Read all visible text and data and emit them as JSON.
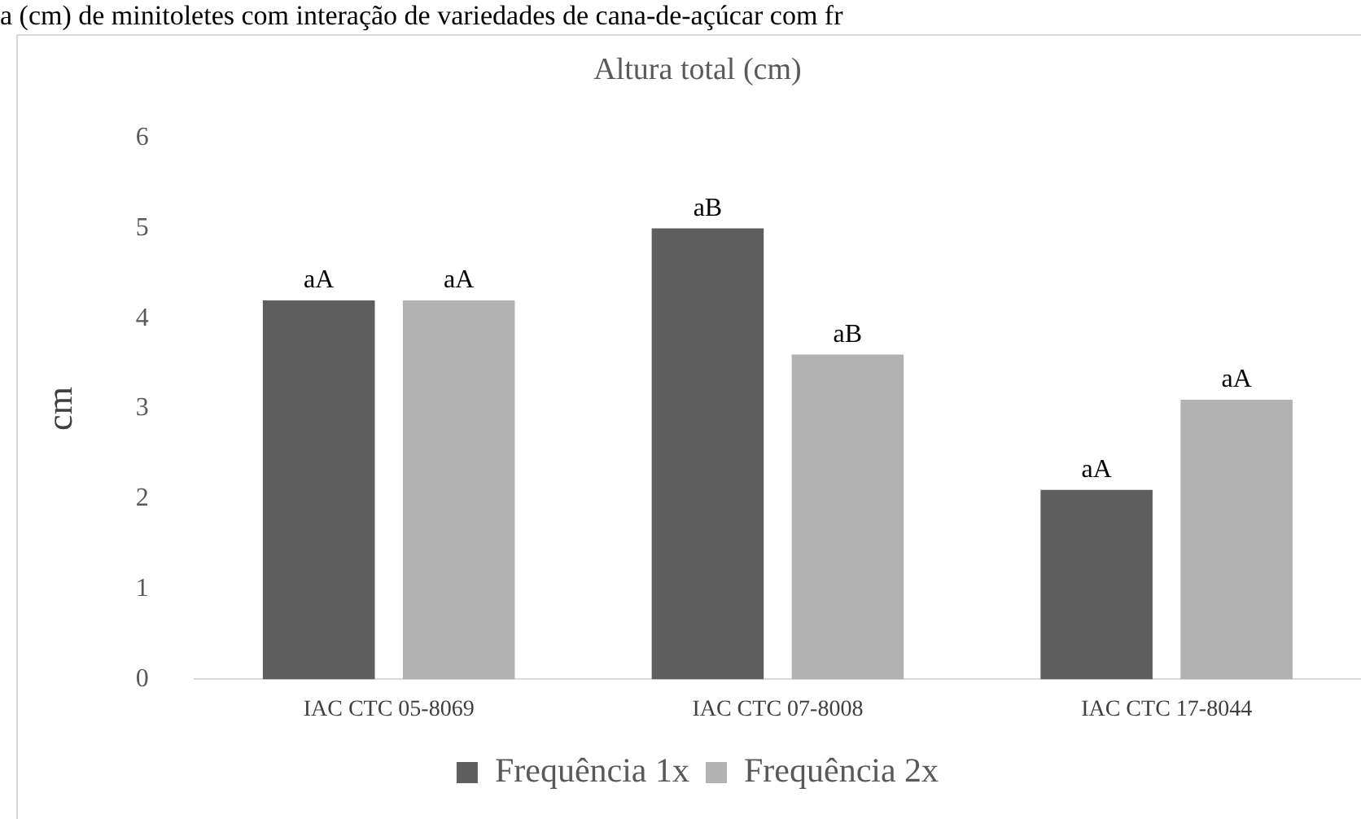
{
  "chart_data": {
    "type": "bar",
    "title": "Altura total (cm)",
    "ylabel": "cm",
    "annotations": [
      "a (cm) de minitoletes com interação de variedades de cana-de-açúcar com fr"
    ],
    "categories": [
      "IAC CTC 05-8069",
      "IAC CTC 07-8008",
      "IAC CTC 17-8044"
    ],
    "series": [
      {
        "name": "Frequência 1x",
        "color": "#5e5e5e",
        "values": [
          4.2,
          5.0,
          2.1
        ],
        "value_labels": [
          "aA",
          "aB",
          "aA"
        ]
      },
      {
        "name": "Frequência 2x",
        "color": "#b2b2b2",
        "values": [
          4.2,
          3.6,
          3.1
        ],
        "value_labels": [
          "aA",
          "aB",
          "aA"
        ]
      }
    ],
    "ylim": [
      0,
      6
    ],
    "yticks": [
      0,
      1,
      2,
      3,
      4,
      5,
      6
    ],
    "grid": false,
    "legend": "bottom"
  }
}
